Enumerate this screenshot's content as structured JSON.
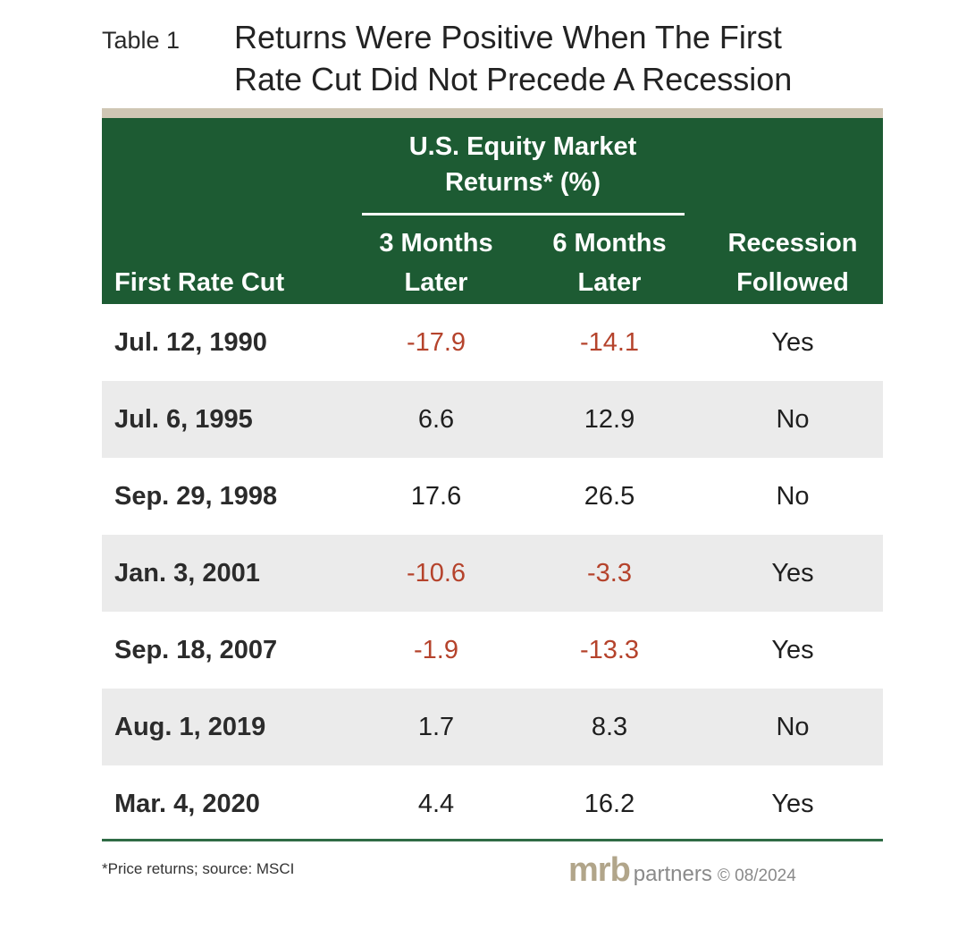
{
  "table_label": "Table 1",
  "title_line1": "Returns Were Positive When The First",
  "title_line2": "Rate Cut Did Not Precede A Recession",
  "header": {
    "group_line1": "U.S. Equity Market",
    "group_line2": "Returns* (%)",
    "col_first": "First Rate Cut",
    "col_3m_line1": "3 Months",
    "col_3m_line2": "Later",
    "col_6m_line1": "6 Months",
    "col_6m_line2": "Later",
    "col_rec_line1": "Recession",
    "col_rec_line2": "Followed"
  },
  "rows": [
    {
      "date": "Jul. 12, 1990",
      "m3": "-17.9",
      "m6": "-14.1",
      "recession": "Yes"
    },
    {
      "date": "Jul. 6, 1995",
      "m3": "6.6",
      "m6": "12.9",
      "recession": "No"
    },
    {
      "date": "Sep. 29, 1998",
      "m3": "17.6",
      "m6": "26.5",
      "recession": "No"
    },
    {
      "date": "Jan. 3, 2001",
      "m3": "-10.6",
      "m6": "-3.3",
      "recession": "Yes"
    },
    {
      "date": "Sep. 18, 2007",
      "m3": "-1.9",
      "m6": "-13.3",
      "recession": "Yes"
    },
    {
      "date": "Aug. 1, 2019",
      "m3": "1.7",
      "m6": "8.3",
      "recession": "No"
    },
    {
      "date": "Mar. 4, 2020",
      "m3": "4.4",
      "m6": "16.2",
      "recession": "Yes"
    }
  ],
  "footnote": "*Price returns; source: MSCI",
  "brand": {
    "logo": "mrb",
    "partners": "partners",
    "copyright": "© 08/2024"
  },
  "colors": {
    "header_bg": "#1d5b33",
    "negative": "#b5432c",
    "alt_row": "#ebebeb"
  },
  "chart_data": {
    "type": "table",
    "title": "Returns Were Positive When The First Rate Cut Did Not Precede A Recession",
    "columns": [
      "First Rate Cut",
      "3 Months Later",
      "6 Months Later",
      "Recession Followed"
    ],
    "rows": [
      [
        "Jul. 12, 1990",
        -17.9,
        -14.1,
        "Yes"
      ],
      [
        "Jul. 6, 1995",
        6.6,
        12.9,
        "No"
      ],
      [
        "Sep. 29, 1998",
        17.6,
        26.5,
        "No"
      ],
      [
        "Jan. 3, 2001",
        -10.6,
        -3.3,
        "Yes"
      ],
      [
        "Sep. 18, 2007",
        -1.9,
        -13.3,
        "Yes"
      ],
      [
        "Aug. 1, 2019",
        1.7,
        8.3,
        "No"
      ],
      [
        "Mar. 4, 2020",
        4.4,
        16.2,
        "Yes"
      ]
    ]
  }
}
